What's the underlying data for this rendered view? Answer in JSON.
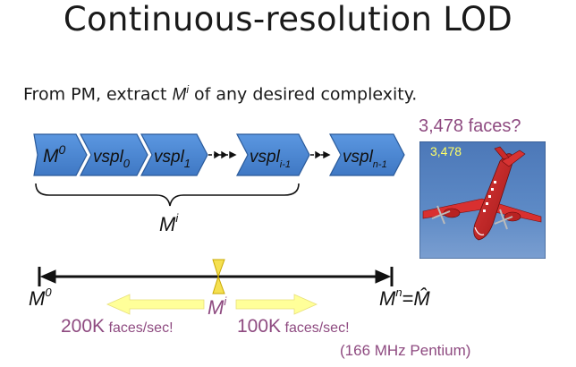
{
  "title": "Continuous-resolution LOD",
  "subtitle": {
    "prefix": "From PM, extract ",
    "m": "M",
    "sup": "i",
    "suffix": " of any desired complexity."
  },
  "chevrons": [
    {
      "base": "M",
      "script": "0",
      "script_type": "sup"
    },
    {
      "base": "vspl",
      "script": "0",
      "script_type": "sub"
    },
    {
      "base": "vspl",
      "script": "1",
      "script_type": "sub"
    },
    {
      "base": "vspl",
      "script": "i-1",
      "script_type": "sub"
    },
    {
      "base": "vspl",
      "script": "n-1",
      "script_type": "sub"
    }
  ],
  "brace_label": {
    "base": "M",
    "sup": "i"
  },
  "axis": {
    "left_label": {
      "base": "M",
      "sup": "0"
    },
    "slider_label": {
      "base": "M",
      "sup": "i"
    },
    "right_label": {
      "base": "M",
      "sup": "n",
      "equals": "=",
      "hat": "M̂"
    }
  },
  "rates": {
    "left_num": "200K",
    "left_unit": " faces/sec!",
    "right_num": "100K",
    "right_unit": " faces/sec!"
  },
  "cpu_note": "(166 MHz Pentium)",
  "image": {
    "question": "3,478 faces?",
    "count": "3,478"
  },
  "colors": {
    "chevron_fill": "#4a86d4",
    "chevron_stroke": "#2a5a9a",
    "accent_text": "#8e4a80",
    "arrow_yellow": "#ffff99",
    "slider_yellow": "#f5e050"
  }
}
